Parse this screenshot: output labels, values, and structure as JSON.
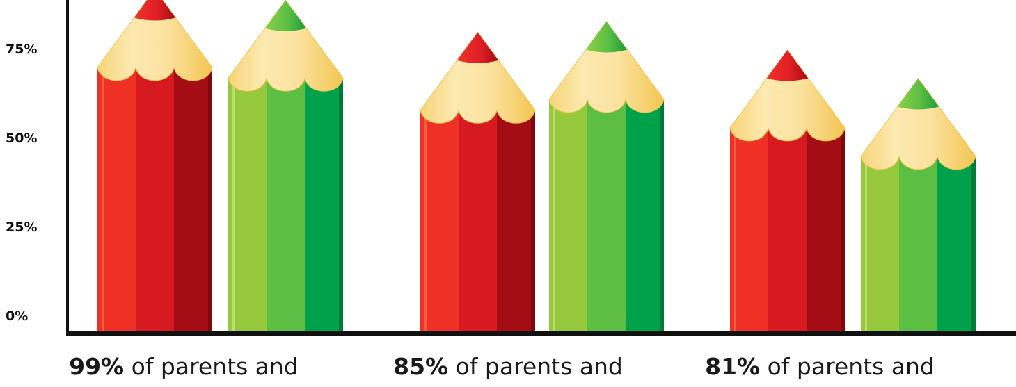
{
  "chart_data": {
    "type": "bar",
    "title": "",
    "xlabel": "",
    "ylabel": "",
    "ylim": [
      0,
      100
    ],
    "yticks": [
      "0%",
      "25%",
      "50%",
      "75%"
    ],
    "categories": [
      "99%",
      "85%",
      "81%"
    ],
    "captions": [
      {
        "value": "99%",
        "text": " of parents and"
      },
      {
        "value": "85%",
        "text": " of parents and"
      },
      {
        "value": "81%",
        "text": " of parents and"
      }
    ],
    "series": [
      {
        "color": "#d71920",
        "values": [
          74,
          62,
          57
        ]
      },
      {
        "color": "#4fb848",
        "values": [
          71,
          65,
          49
        ]
      }
    ],
    "grid": false,
    "legend": "none"
  }
}
